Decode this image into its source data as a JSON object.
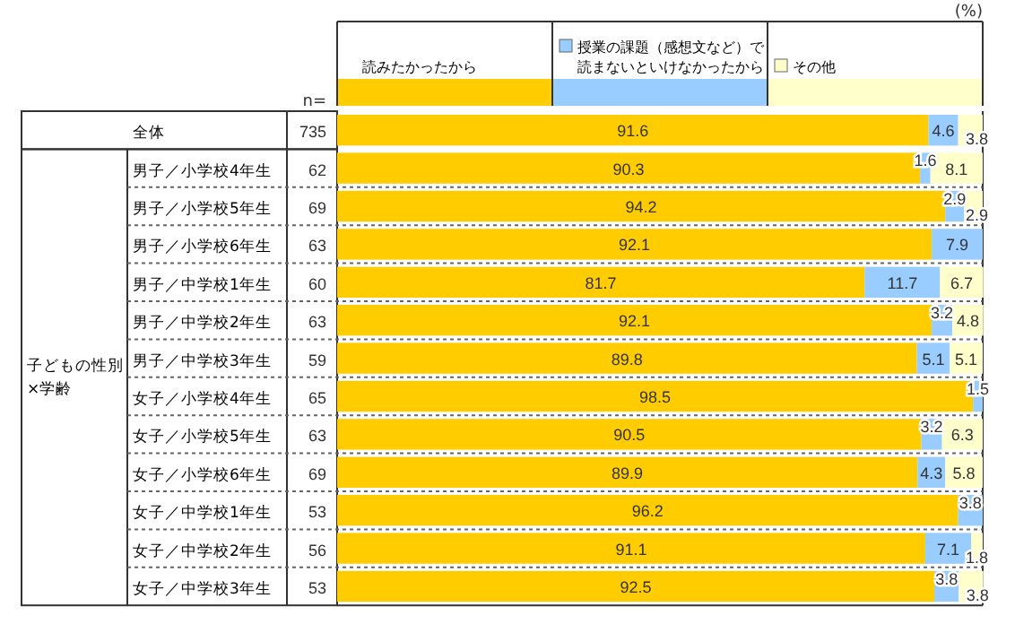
{
  "chart_data": {
    "type": "bar",
    "orientation": "horizontal",
    "stacked": true,
    "data_labels": true,
    "legend": "top",
    "xlim": [
      0,
      100
    ],
    "categories": [
      "全体",
      "男子／小学校4年生",
      "男子／小学校5年生",
      "男子／小学校6年生",
      "男子／中学校1年生",
      "男子／中学校2年生",
      "男子／中学校3年生",
      "女子／小学校4年生",
      "女子／小学校5年生",
      "女子／小学校6年生",
      "女子／中学校1年生",
      "女子／中学校2年生",
      "女子／中学校3年生"
    ],
    "series": [
      {
        "name": "読みたかったから",
        "color": "#ffcc00",
        "values": [
          91.6,
          90.3,
          94.2,
          92.1,
          81.7,
          92.1,
          89.8,
          98.5,
          90.5,
          89.9,
          96.2,
          91.1,
          92.5
        ]
      },
      {
        "name": "授業の課題（感想文など）で読まないといけなかったから",
        "color": "#99ccff",
        "values": [
          4.6,
          1.6,
          2.9,
          7.9,
          11.7,
          3.2,
          5.1,
          1.5,
          3.2,
          4.3,
          3.8,
          7.1,
          3.8
        ]
      },
      {
        "name": "その他",
        "color": "#ffffcc",
        "values": [
          3.8,
          8.1,
          2.9,
          null,
          6.7,
          4.8,
          5.1,
          null,
          6.3,
          5.8,
          null,
          1.8,
          3.8
        ]
      }
    ],
    "annotations": [
      "(%)",
      "n=",
      "子どもの性別×学齢",
      "735",
      "62",
      "69",
      "63",
      "60",
      "63",
      "59",
      "65",
      "63",
      "69",
      "53",
      "56",
      "53"
    ]
  }
}
